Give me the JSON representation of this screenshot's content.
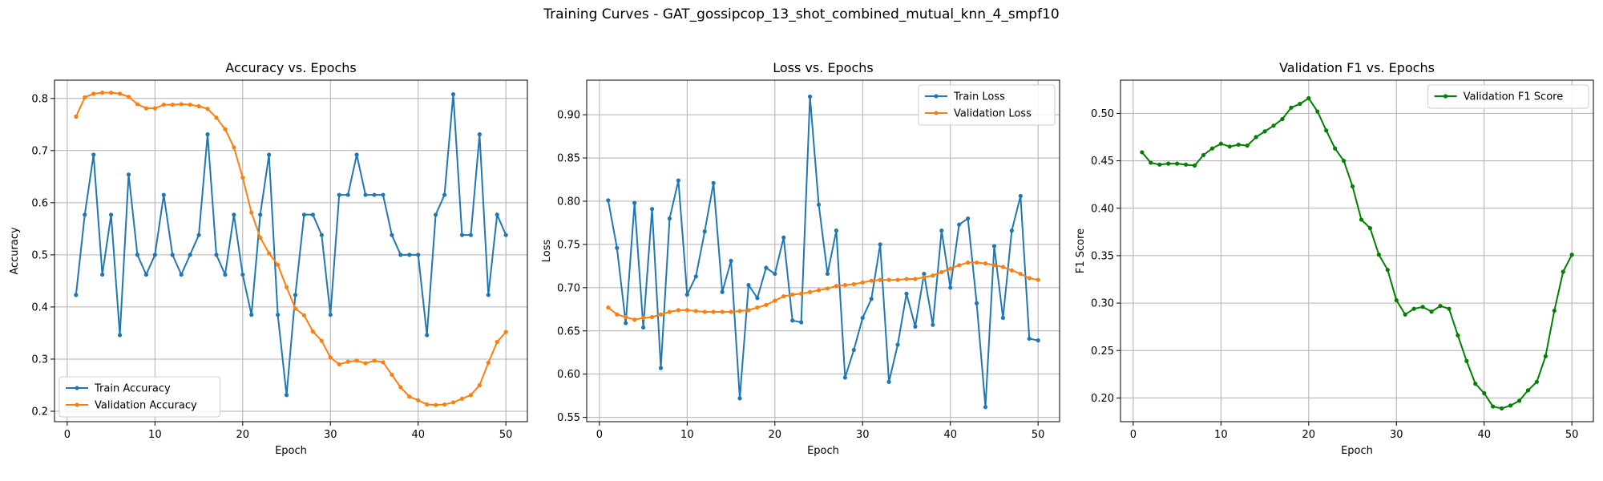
{
  "suptitle": "Training Curves - GAT_gossipcop_13_shot_combined_mutual_knn_4_smpf10",
  "chart_data": [
    {
      "type": "line",
      "title": "Accuracy vs. Epochs",
      "xlabel": "Epoch",
      "ylabel": "Accuracy",
      "xlim": [
        -1.45,
        52.45
      ],
      "ylim": [
        0.18,
        0.835
      ],
      "xticks": [
        0,
        10,
        20,
        30,
        40,
        50
      ],
      "yticks": [
        0.2,
        0.3,
        0.4,
        0.5,
        0.6,
        0.7,
        0.8
      ],
      "grid": true,
      "legend_position": "lower-left",
      "x": [
        1,
        2,
        3,
        4,
        5,
        6,
        7,
        8,
        9,
        10,
        11,
        12,
        13,
        14,
        15,
        16,
        17,
        18,
        19,
        20,
        21,
        22,
        23,
        24,
        25,
        26,
        27,
        28,
        29,
        30,
        31,
        32,
        33,
        34,
        35,
        36,
        37,
        38,
        39,
        40,
        41,
        42,
        43,
        44,
        45,
        46,
        47,
        48,
        49,
        50
      ],
      "series": [
        {
          "name": "Train Accuracy",
          "color": "#1f77b4",
          "values": [
            0.423,
            0.577,
            0.692,
            0.462,
            0.577,
            0.346,
            0.654,
            0.5,
            0.462,
            0.5,
            0.615,
            0.5,
            0.462,
            0.5,
            0.538,
            0.731,
            0.5,
            0.462,
            0.577,
            0.462,
            0.385,
            0.577,
            0.692,
            0.385,
            0.231,
            0.423,
            0.577,
            0.577,
            0.538,
            0.385,
            0.615,
            0.615,
            0.692,
            0.615,
            0.615,
            0.615,
            0.538,
            0.5,
            0.5,
            0.5,
            0.346,
            0.577,
            0.615,
            0.808,
            0.538,
            0.538,
            0.731,
            0.423,
            0.577,
            0.538
          ]
        },
        {
          "name": "Validation Accuracy",
          "color": "#ff7f0e",
          "values": [
            0.765,
            0.802,
            0.809,
            0.811,
            0.811,
            0.809,
            0.803,
            0.789,
            0.781,
            0.781,
            0.788,
            0.788,
            0.789,
            0.788,
            0.785,
            0.78,
            0.763,
            0.741,
            0.706,
            0.648,
            0.581,
            0.533,
            0.503,
            0.481,
            0.438,
            0.397,
            0.384,
            0.353,
            0.335,
            0.303,
            0.29,
            0.295,
            0.297,
            0.292,
            0.297,
            0.294,
            0.27,
            0.246,
            0.228,
            0.221,
            0.213,
            0.212,
            0.213,
            0.217,
            0.224,
            0.231,
            0.25,
            0.293,
            0.333,
            0.352
          ]
        }
      ]
    },
    {
      "type": "line",
      "title": "Loss vs. Epochs",
      "xlabel": "Epoch",
      "ylabel": "Loss",
      "xlim": [
        -1.45,
        52.45
      ],
      "ylim": [
        0.545,
        0.94
      ],
      "xticks": [
        0,
        10,
        20,
        30,
        40,
        50
      ],
      "yticks": [
        0.55,
        0.6,
        0.65,
        0.7,
        0.75,
        0.8,
        0.85,
        0.9
      ],
      "ytick_labels": [
        "0.55",
        "0.60",
        "0.65",
        "0.70",
        "0.75",
        "0.80",
        "0.85",
        "0.90"
      ],
      "grid": true,
      "legend_position": "upper-right",
      "x": [
        1,
        2,
        3,
        4,
        5,
        6,
        7,
        8,
        9,
        10,
        11,
        12,
        13,
        14,
        15,
        16,
        17,
        18,
        19,
        20,
        21,
        22,
        23,
        24,
        25,
        26,
        27,
        28,
        29,
        30,
        31,
        32,
        33,
        34,
        35,
        36,
        37,
        38,
        39,
        40,
        41,
        42,
        43,
        44,
        45,
        46,
        47,
        48,
        49,
        50
      ],
      "series": [
        {
          "name": "Train Loss",
          "color": "#1f77b4",
          "values": [
            0.801,
            0.746,
            0.659,
            0.798,
            0.654,
            0.791,
            0.607,
            0.78,
            0.824,
            0.692,
            0.713,
            0.765,
            0.821,
            0.695,
            0.731,
            0.572,
            0.703,
            0.688,
            0.723,
            0.716,
            0.758,
            0.662,
            0.66,
            0.921,
            0.796,
            0.716,
            0.766,
            0.596,
            0.628,
            0.665,
            0.687,
            0.75,
            0.591,
            0.634,
            0.693,
            0.655,
            0.716,
            0.657,
            0.766,
            0.7,
            0.773,
            0.78,
            0.682,
            0.562,
            0.748,
            0.665,
            0.766,
            0.806,
            0.641,
            0.639
          ]
        },
        {
          "name": "Validation Loss",
          "color": "#ff7f0e",
          "values": [
            0.677,
            0.669,
            0.666,
            0.663,
            0.665,
            0.666,
            0.669,
            0.672,
            0.674,
            0.674,
            0.673,
            0.672,
            0.672,
            0.672,
            0.672,
            0.673,
            0.674,
            0.677,
            0.68,
            0.685,
            0.69,
            0.692,
            0.693,
            0.695,
            0.697,
            0.699,
            0.702,
            0.703,
            0.704,
            0.706,
            0.708,
            0.709,
            0.709,
            0.709,
            0.71,
            0.71,
            0.712,
            0.714,
            0.718,
            0.722,
            0.726,
            0.729,
            0.729,
            0.728,
            0.726,
            0.724,
            0.72,
            0.716,
            0.711,
            0.709
          ]
        }
      ]
    },
    {
      "type": "line",
      "title": "Validation F1 vs. Epochs",
      "xlabel": "Epoch",
      "ylabel": "F1 Score",
      "xlim": [
        -1.45,
        52.45
      ],
      "ylim": [
        0.175,
        0.535
      ],
      "xticks": [
        0,
        10,
        20,
        30,
        40,
        50
      ],
      "yticks": [
        0.2,
        0.25,
        0.3,
        0.35,
        0.4,
        0.45,
        0.5
      ],
      "ytick_labels": [
        "0.20",
        "0.25",
        "0.30",
        "0.35",
        "0.40",
        "0.45",
        "0.50"
      ],
      "grid": true,
      "legend_position": "upper-right",
      "x": [
        1,
        2,
        3,
        4,
        5,
        6,
        7,
        8,
        9,
        10,
        11,
        12,
        13,
        14,
        15,
        16,
        17,
        18,
        19,
        20,
        21,
        22,
        23,
        24,
        25,
        26,
        27,
        28,
        29,
        30,
        31,
        32,
        33,
        34,
        35,
        36,
        37,
        38,
        39,
        40,
        41,
        42,
        43,
        44,
        45,
        46,
        47,
        48,
        49,
        50
      ],
      "series": [
        {
          "name": "Validation F1 Score",
          "color": "#008000",
          "values": [
            0.459,
            0.448,
            0.446,
            0.447,
            0.447,
            0.446,
            0.445,
            0.456,
            0.463,
            0.468,
            0.465,
            0.467,
            0.466,
            0.475,
            0.481,
            0.487,
            0.494,
            0.506,
            0.51,
            0.516,
            0.502,
            0.482,
            0.463,
            0.45,
            0.423,
            0.388,
            0.379,
            0.351,
            0.335,
            0.303,
            0.288,
            0.294,
            0.296,
            0.291,
            0.297,
            0.294,
            0.266,
            0.239,
            0.215,
            0.205,
            0.191,
            0.189,
            0.192,
            0.197,
            0.208,
            0.217,
            0.244,
            0.292,
            0.333,
            0.351
          ]
        }
      ]
    }
  ]
}
